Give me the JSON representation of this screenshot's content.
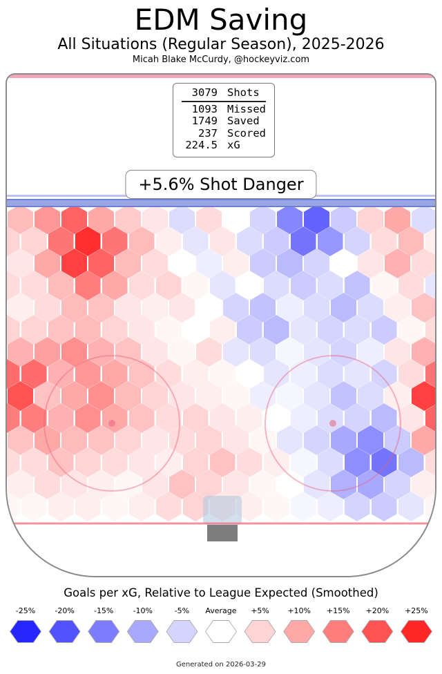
{
  "header": {
    "title": "EDM Saving",
    "subtitle": "All Situations (Regular Season), 2025-2026",
    "attribution": "Micah Blake McCurdy, @hockeyviz.com"
  },
  "stats": {
    "rows": [
      {
        "value": "3079",
        "label": "Shots"
      },
      {
        "value": "1093",
        "label": "Missed"
      },
      {
        "value": "1749",
        "label": "Saved"
      },
      {
        "value": "237",
        "label": "Scored"
      },
      {
        "value": "224.5",
        "label": "xG"
      }
    ]
  },
  "shot_danger": {
    "label": "+5.6% Shot Danger"
  },
  "legend": {
    "title": "Goals per xG, Relative to League Expected (Smoothed)",
    "ticks": [
      "-25%",
      "-20%",
      "-15%",
      "-10%",
      "-5%",
      "Average",
      "+5%",
      "+10%",
      "+15%",
      "+20%",
      "+25%"
    ],
    "tick_values": [
      -25,
      -20,
      -15,
      -10,
      -5,
      0,
      5,
      10,
      15,
      20,
      25
    ]
  },
  "footer": {
    "generated": "Generated on 2026-03-29"
  },
  "chart_data": {
    "type": "heatmap",
    "title": "EDM Saving",
    "subtitle": "All Situations (Regular Season), 2025-2026",
    "metric": "Goals per xG, Relative to League Expected (Smoothed)",
    "units": "percent relative to league expected",
    "value_range": [
      -25,
      25
    ],
    "colors": {
      "negative": "#0000ff",
      "zero": "#ffffff",
      "positive": "#ff0000"
    },
    "grid": {
      "cols": 16,
      "rows": 14,
      "hex_orientation": "pointy-top",
      "odd_row_offset": true
    },
    "values": [
      [
        8,
        12,
        18,
        10,
        6,
        3,
        -4,
        4,
        0,
        -5,
        -14,
        -18,
        -6,
        5,
        10,
        -4
      ],
      [
        5,
        16,
        24,
        16,
        8,
        2,
        -3,
        3,
        -4,
        -6,
        -16,
        -12,
        -5,
        4,
        8,
        2
      ],
      [
        3,
        10,
        22,
        18,
        8,
        4,
        0,
        -2,
        2,
        -6,
        -8,
        -5,
        0,
        3,
        9,
        4
      ],
      [
        4,
        8,
        15,
        10,
        4,
        5,
        1,
        -3,
        0,
        -4,
        -6,
        -4,
        -7,
        1,
        4,
        -3
      ],
      [
        2,
        4,
        8,
        7,
        3,
        2,
        3,
        0,
        -5,
        -7,
        -2,
        -4,
        -8,
        -4,
        2,
        7
      ],
      [
        5,
        7,
        8,
        5,
        3,
        1,
        0,
        2,
        -6,
        -8,
        -3,
        -5,
        -4,
        -6,
        1,
        4
      ],
      [
        9,
        11,
        13,
        9,
        7,
        3,
        1,
        4,
        -3,
        -4,
        -1,
        -3,
        -5,
        -2,
        3,
        9
      ],
      [
        17,
        9,
        12,
        10,
        7,
        4,
        2,
        1,
        0,
        -3,
        -2,
        -4,
        -3,
        -5,
        4,
        16
      ],
      [
        20,
        7,
        10,
        13,
        8,
        5,
        3,
        2,
        1,
        -2,
        -1,
        -3,
        -7,
        -4,
        2,
        22
      ],
      [
        15,
        9,
        13,
        10,
        7,
        4,
        5,
        3,
        2,
        0,
        -2,
        -4,
        -5,
        -8,
        3,
        18
      ],
      [
        7,
        10,
        8,
        7,
        5,
        3,
        4,
        5,
        3,
        1,
        -3,
        -5,
        -10,
        -13,
        -6,
        10
      ],
      [
        4,
        7,
        5,
        4,
        3,
        2,
        5,
        7,
        4,
        2,
        -1,
        -4,
        -13,
        -16,
        -8,
        4
      ],
      [
        2,
        4,
        3,
        2,
        1,
        3,
        7,
        5,
        3,
        1,
        0,
        -3,
        -9,
        -10,
        -5,
        2
      ],
      [
        1,
        2,
        2,
        1,
        2,
        4,
        5,
        3,
        2,
        1,
        -1,
        -2,
        -5,
        -6,
        -3,
        1
      ]
    ]
  }
}
